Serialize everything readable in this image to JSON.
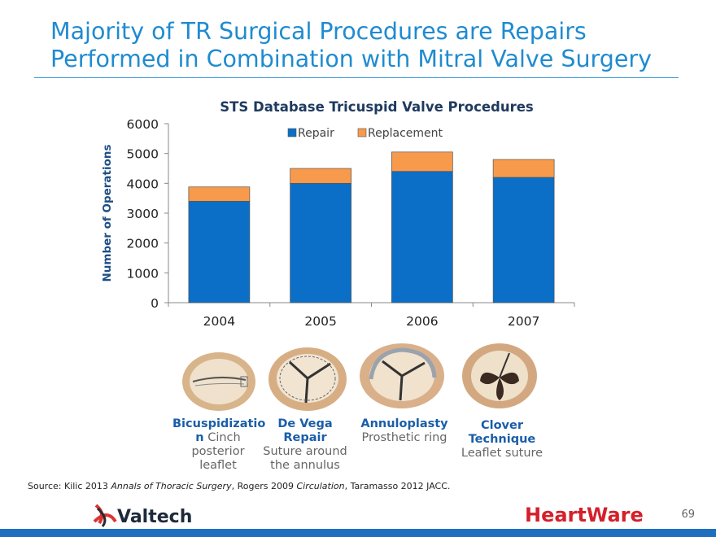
{
  "slide": {
    "title_line1": "Majority of TR Surgical Procedures are Repairs",
    "title_line2": "Performed in Combination with Mitral Valve Surgery",
    "page_number": "69",
    "source_prefix": "Source: Kilic 2013 ",
    "source_journal1": "Annals of Thoracic Surgery",
    "source_mid": ", Rogers 2009 ",
    "source_journal2": "Circulation",
    "source_suffix": ", Taramasso 2012 JACC.",
    "logo_left": "Valtech",
    "logo_right": "HeartWare",
    "colors": {
      "title": "#1f8bd0",
      "bar_bottom": "#1f6fc0"
    }
  },
  "chart_data": {
    "type": "bar",
    "stacked": true,
    "title": "STS Database Tricuspid Valve Procedures",
    "xlabel": "",
    "ylabel": "Number of Operations",
    "categories": [
      "2004",
      "2005",
      "2006",
      "2007"
    ],
    "series": [
      {
        "name": "Repair",
        "values": [
          3400,
          4000,
          4400,
          4200
        ],
        "color": "#0b6fc7"
      },
      {
        "name": "Replacement",
        "values": [
          480,
          500,
          650,
          600
        ],
        "color": "#f79a4c"
      }
    ],
    "ylim": [
      0,
      6000
    ],
    "yticks": [
      "0",
      "1000",
      "2000",
      "3000",
      "4000",
      "5000",
      "6000"
    ],
    "grid": false,
    "legend": "top-center"
  },
  "techniques": [
    {
      "name": "Bicuspidizatio n",
      "rest": " Cinch",
      "desc": "posterior leaflet"
    },
    {
      "name": "De Vega Repair",
      "rest": "",
      "desc": "Suture around the annulus"
    },
    {
      "name": "Annuloplasty",
      "rest": "",
      "desc": "Prosthetic ring"
    },
    {
      "name": "Clover Technique",
      "rest": "",
      "desc": "Leaflet suture"
    }
  ]
}
